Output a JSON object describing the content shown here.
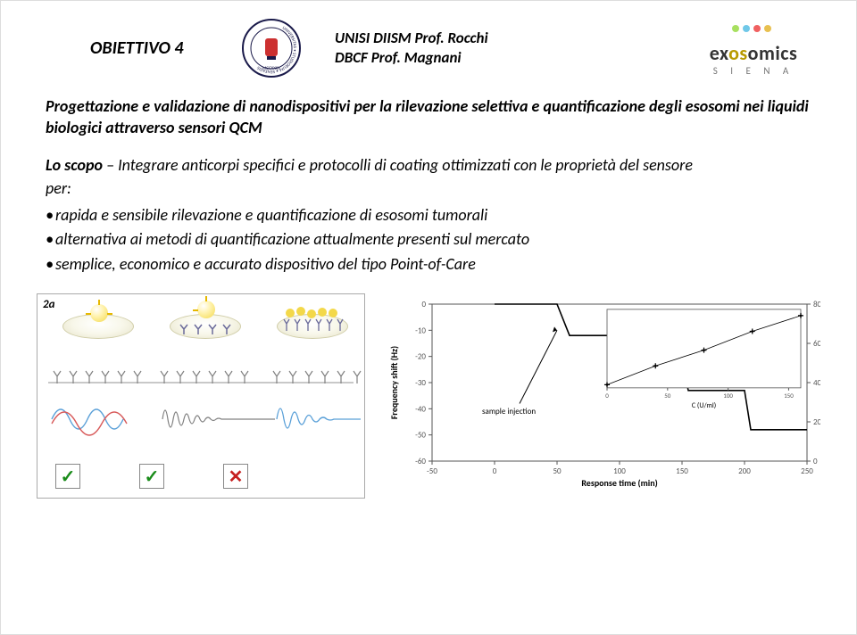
{
  "header": {
    "title_left": "OBIETTIVO 4",
    "center_line1": "UNISI  DIISM Prof. Rocchi",
    "center_line2": "DBCF Prof. Magnani",
    "brand_prefix": "ex",
    "brand_mid": "os",
    "brand_suffix": "omics",
    "brand_sub": "S I E N A"
  },
  "intro": "Progettazione e validazione di nanodispositivi per la rilevazione selettiva e quantificazione degli esosomi nei liquidi biologici attraverso sensori QCM",
  "scope_label": "Lo scopo",
  "scope_text": " – Integrare anticorpi specifici e protocolli di coating ottimizzati con le proprietà del sensore",
  "per": "per:",
  "bullets": [
    "rapida e sensibile rilevazione e quantificazione di esosomi tumorali",
    "alternativa ai metodi di quantificazione attualmente presenti sul mercato",
    "semplice, economico e accurato dispositivo del tipo Point-of-Care"
  ],
  "fig2a": {
    "label": "2a",
    "check_ok": "✓",
    "check_no": "✕"
  },
  "chart": {
    "xlabel": "Response time (min)",
    "ylabel_left": "Frequency shift (Hz)",
    "ylabel_right": "Frequency shift (Hz)",
    "inset_xlabel": "C",
    "inset_xlabel_sub": "D1.1B1",
    "inset_xlabel_unit": " (U/ml)",
    "sample_label": "sample injection",
    "step_x": [
      0,
      50,
      60,
      100,
      105,
      150,
      155,
      200,
      205,
      250
    ],
    "step_y": [
      0,
      0,
      -12,
      -12,
      -22,
      -22,
      -33,
      -33,
      -48,
      -48
    ],
    "step_color": "#000000",
    "inset_x": [
      0,
      40,
      80,
      120,
      160
    ],
    "inset_y": [
      4,
      28,
      48,
      72,
      92
    ],
    "inset_marker_color": "#000000",
    "left_yticks": [
      0,
      -10,
      -20,
      -30,
      -40,
      -50,
      -60
    ],
    "left_xticks": [
      -50,
      0,
      50,
      100,
      150,
      200,
      250
    ],
    "right_yticks": [
      0,
      20,
      40,
      60,
      80
    ],
    "inset_xticks": [
      0,
      50,
      100,
      150
    ],
    "axis_color": "#555555",
    "label_fontsize": 10,
    "tick_fontsize": 9,
    "background_color": "#ffffff"
  },
  "colors": {
    "wave_blue": "#5aa0d8",
    "wave_red": "#d85a5a",
    "wave_gray": "#808080",
    "plate_gold": "#e6e3c8",
    "exo_yellow": "#f3d84a",
    "antibody": "#6a6a9a"
  }
}
